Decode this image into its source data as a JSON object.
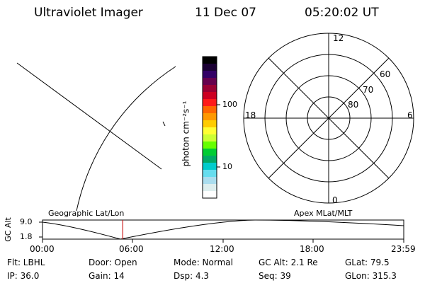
{
  "header": {
    "instrument": "Ultraviolet Imager",
    "date": "11 Dec 07",
    "time": "05:20:02 UT"
  },
  "colorbar": {
    "unit_label": "photon cm⁻²s⁻¹",
    "ticks": [
      "100",
      "10"
    ],
    "colors": [
      "#000000",
      "#1a0033",
      "#330066",
      "#66004d",
      "#990033",
      "#cc0022",
      "#ff1a1a",
      "#ff6600",
      "#ff9900",
      "#ffcc00",
      "#ffff33",
      "#ccff33",
      "#66ff00",
      "#00cc33",
      "#00aa66",
      "#00cccc",
      "#66ddee",
      "#aaddee",
      "#ddeeee",
      "#ffffff"
    ]
  },
  "polar_plot": {
    "mlt_labels": {
      "top": "12",
      "left": "18",
      "right": "6",
      "bottom": "0"
    },
    "mlat_labels": [
      "60",
      "70",
      "80"
    ]
  },
  "altitude_strip": {
    "ylabel": "GC Alt",
    "y_ticks": [
      "9.0",
      "1.8"
    ],
    "left_title": "Geographic Lat/Lon",
    "right_title": "Apex MLat/MLT",
    "x_ticks": [
      "00:00",
      "06:00",
      "12:00",
      "18:00",
      "23:59"
    ],
    "marker_hour": 5.33,
    "marker_color": "#cc2222"
  },
  "status": {
    "filter": "Flt:  LBHL",
    "door": "Door:  Open",
    "mode": "Mode:  Normal",
    "gc_alt": "GC Alt:  2.1 Re",
    "glat": "GLat:   79.5",
    "ip": "IP:  36.0",
    "gain": "Gain:  14",
    "dsp": "Dsp:      4.3",
    "seq": "Seq:  39",
    "glon": "GLon:  315.3"
  }
}
